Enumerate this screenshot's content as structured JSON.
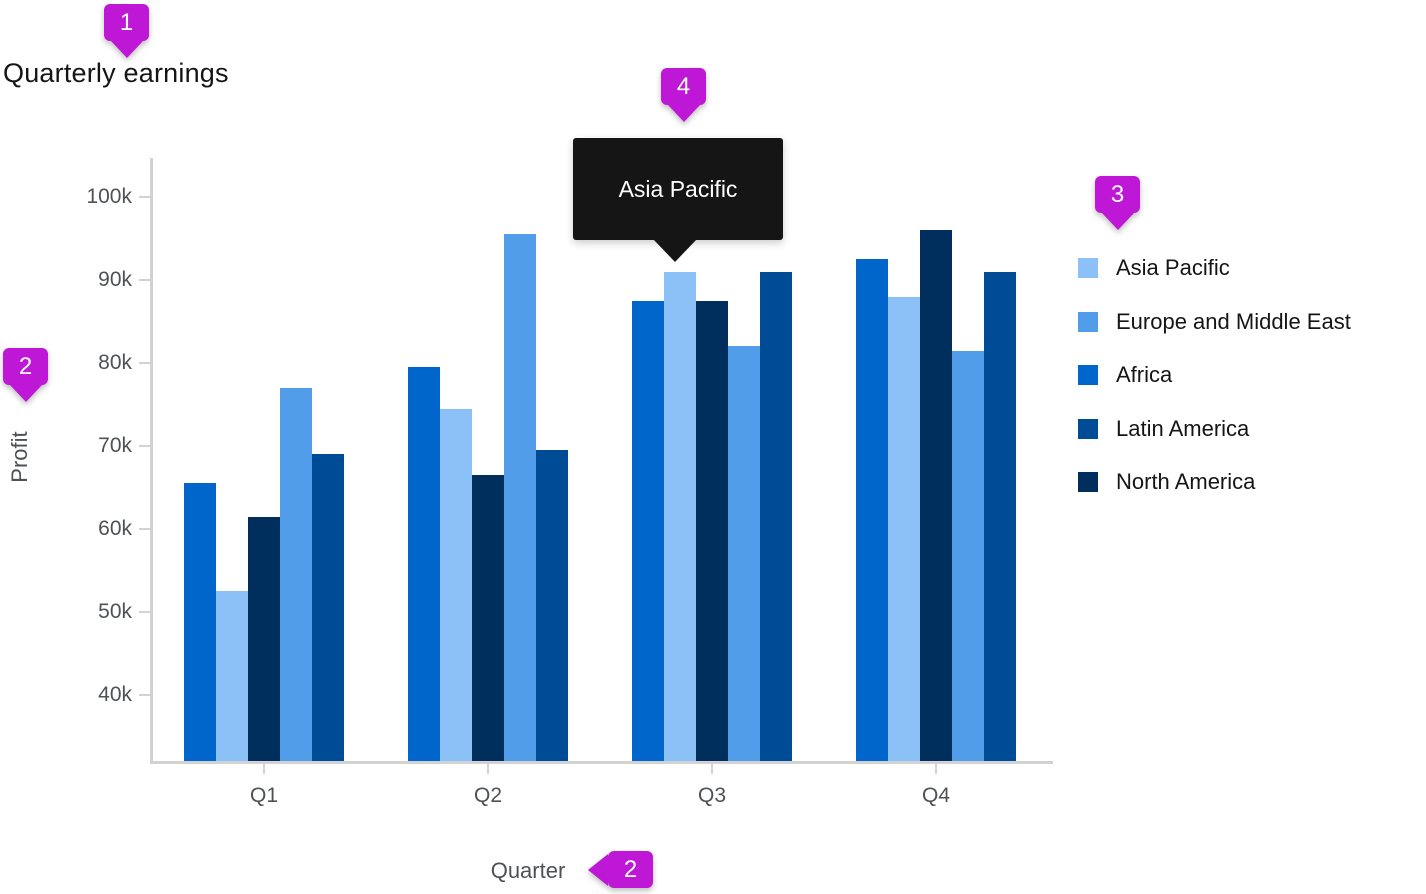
{
  "title": "Quarterly earnings",
  "axes": {
    "y_label": "Profit",
    "x_label": "Quarter",
    "y_ticks": [
      "100k",
      "90k",
      "80k",
      "70k",
      "60k",
      "50k",
      "40k"
    ],
    "x_ticks": [
      "Q1",
      "Q2",
      "Q3",
      "Q4"
    ]
  },
  "legend": {
    "items": [
      {
        "label": "Asia Pacific",
        "color": "#8BC1F7"
      },
      {
        "label": "Europe and Middle East",
        "color": "#519DE9"
      },
      {
        "label": "Africa",
        "color": "#0066CC"
      },
      {
        "label": "Latin America",
        "color": "#004B95"
      },
      {
        "label": "North America",
        "color": "#002F5D"
      }
    ]
  },
  "tooltip": {
    "label": "Asia Pacific",
    "target": "Q3 Asia Pacific bar"
  },
  "annotations": {
    "badge_color": "#BE18D6",
    "badges": [
      {
        "label": "1",
        "points_to": "chart title"
      },
      {
        "label": "2",
        "points_to": "y-axis label"
      },
      {
        "label": "2",
        "points_to": "x-axis label"
      },
      {
        "label": "3",
        "points_to": "legend"
      },
      {
        "label": "4",
        "points_to": "tooltip"
      }
    ]
  },
  "chart_data": {
    "type": "bar",
    "title": "Quarterly earnings",
    "xlabel": "Quarter",
    "ylabel": "Profit",
    "categories": [
      "Q1",
      "Q2",
      "Q3",
      "Q4"
    ],
    "series": [
      {
        "name": "Asia Pacific",
        "color": "#8BC1F7",
        "values": [
          52500,
          74500,
          91000,
          88000
        ]
      },
      {
        "name": "Europe and Middle East",
        "color": "#519DE9",
        "values": [
          77000,
          95500,
          82000,
          81500
        ]
      },
      {
        "name": "Africa",
        "color": "#0066CC",
        "values": [
          65500,
          79500,
          87500,
          92500
        ]
      },
      {
        "name": "Latin America",
        "color": "#004B95",
        "values": [
          69000,
          69500,
          91000,
          91000
        ]
      },
      {
        "name": "North America",
        "color": "#002F5D",
        "values": [
          61500,
          66500,
          87500,
          96000
        ]
      }
    ],
    "bar_order": [
      "Africa",
      "Asia Pacific",
      "North America",
      "Europe and Middle East",
      "Latin America"
    ],
    "ytick_values": [
      100000,
      90000,
      80000,
      70000,
      60000,
      50000,
      40000
    ],
    "ylim": [
      32000,
      104000
    ],
    "legend_position": "right",
    "grid": false
  },
  "colors": {
    "axis": "#D2D2D2",
    "tick_label": "#4F5255",
    "title_text": "#151515",
    "tooltip_bg": "#151515",
    "tooltip_text": "#FFFFFF"
  }
}
